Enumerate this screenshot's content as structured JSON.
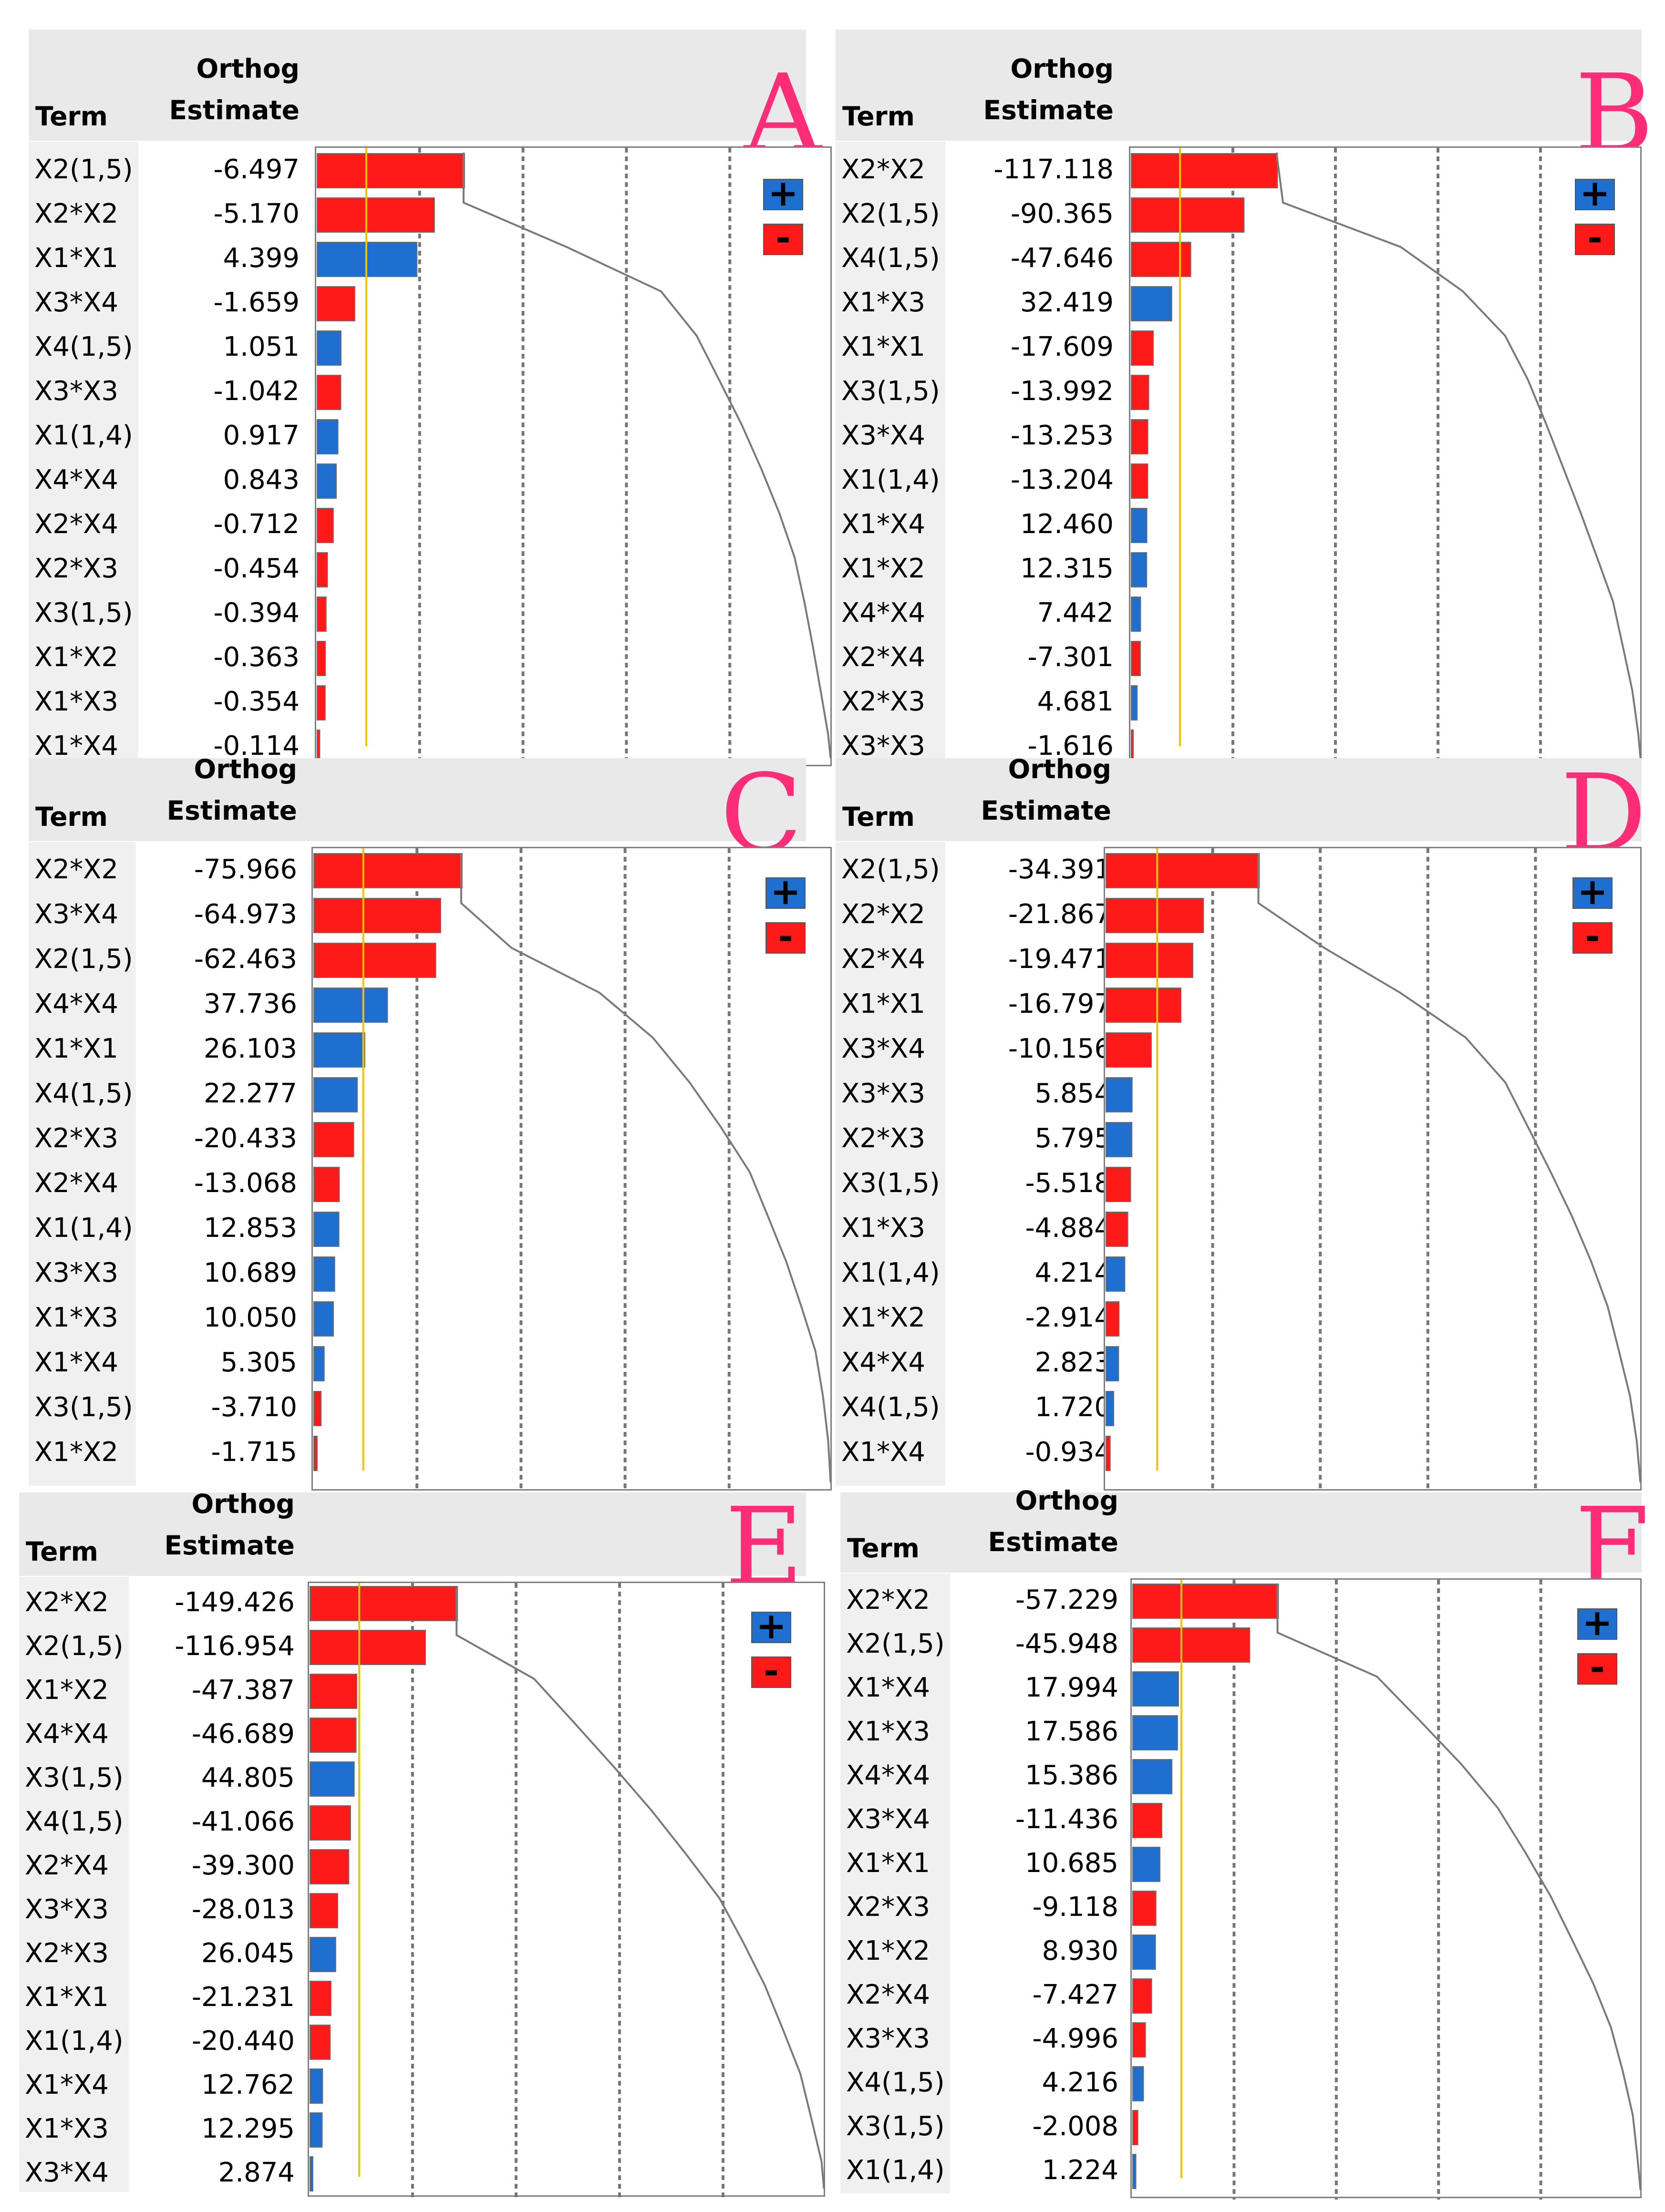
{
  "colors": {
    "positive": "#1f6fd1",
    "negative": "#ff1a1a",
    "accent_line": "#f2c200",
    "curve": "#7a7a7a",
    "header_bg": "#e9e9e9",
    "letter": "#ff2d78",
    "grid": "#777777"
  },
  "headers": {
    "term": "Term",
    "orthog_line1": "Orthog",
    "orthog_line2": "Estimate"
  },
  "legend": {
    "positive": "+",
    "negative": "-"
  },
  "chart_data": [
    {
      "type": "bar",
      "panel": "A",
      "title": "A",
      "max_abs": 6.497,
      "legend_position": "top-right",
      "categories": [
        "X2(1,5)",
        "X2*X2",
        "X1*X1",
        "X3*X4",
        "X4(1,5)",
        "X3*X3",
        "X1(1,4)",
        "X4*X4",
        "X2*X4",
        "X2*X3",
        "X3(1,5)",
        "X1*X2",
        "X1*X3",
        "X1*X4"
      ],
      "labels": [
        "-6.497",
        "-5.170",
        "4.399",
        "-1.659",
        "1.051",
        "-1.042",
        "0.917",
        "0.843",
        "-0.712",
        "-0.454",
        "-0.394",
        "-0.363",
        "-0.354",
        "-0.114"
      ],
      "values": [
        -6.497,
        -5.17,
        4.399,
        -1.659,
        1.051,
        -1.042,
        0.917,
        0.843,
        -0.712,
        -0.454,
        -0.394,
        -0.363,
        -0.354,
        -0.114
      ]
    },
    {
      "type": "bar",
      "panel": "B",
      "title": "B",
      "max_abs": 117.118,
      "legend_position": "top-right",
      "categories": [
        "X2*X2",
        "X2(1,5)",
        "X4(1,5)",
        "X1*X3",
        "X1*X1",
        "X3(1,5)",
        "X3*X4",
        "X1(1,4)",
        "X1*X4",
        "X1*X2",
        "X4*X4",
        "X2*X4",
        "X2*X3",
        "X3*X3"
      ],
      "labels": [
        "-117.118",
        "-90.365",
        "-47.646",
        "32.419",
        "-17.609",
        "-13.992",
        "-13.253",
        "-13.204",
        "12.460",
        "12.315",
        "7.442",
        "-7.301",
        "4.681",
        "-1.616"
      ],
      "values": [
        -117.118,
        -90.365,
        -47.646,
        32.419,
        -17.609,
        -13.992,
        -13.253,
        -13.204,
        12.46,
        12.315,
        7.442,
        -7.301,
        4.681,
        -1.616
      ]
    },
    {
      "type": "bar",
      "panel": "C",
      "title": "C",
      "max_abs": 75.966,
      "legend_position": "top-right",
      "categories": [
        "X2*X2",
        "X3*X4",
        "X2(1,5)",
        "X4*X4",
        "X1*X1",
        "X4(1,5)",
        "X2*X3",
        "X2*X4",
        "X1(1,4)",
        "X3*X3",
        "X1*X3",
        "X1*X4",
        "X3(1,5)",
        "X1*X2"
      ],
      "labels": [
        "-75.966",
        "-64.973",
        "-62.463",
        "37.736",
        "26.103",
        "22.277",
        "-20.433",
        "-13.068",
        "12.853",
        "10.689",
        "10.050",
        "5.305",
        "-3.710",
        "-1.715"
      ],
      "values": [
        -75.966,
        -64.973,
        -62.463,
        37.736,
        26.103,
        22.277,
        -20.433,
        -13.068,
        12.853,
        10.689,
        10.05,
        5.305,
        -3.71,
        -1.715
      ]
    },
    {
      "type": "bar",
      "panel": "D",
      "title": "D",
      "max_abs": 34.391,
      "legend_position": "top-right",
      "categories": [
        "X2(1,5)",
        "X2*X2",
        "X2*X4",
        "X1*X1",
        "X3*X4",
        "X3*X3",
        "X2*X3",
        "X3(1,5)",
        "X1*X3",
        "X1(1,4)",
        "X1*X2",
        "X4*X4",
        "X4(1,5)",
        "X1*X4"
      ],
      "labels": [
        "-34.391",
        "-21.867",
        "-19.471",
        "-16.797",
        "-10.156",
        "5.854",
        "5.795",
        "-5.518",
        "-4.884",
        "4.214",
        "-2.914",
        "2.823",
        "1.720",
        "-0.934"
      ],
      "values": [
        -34.391,
        -21.867,
        -19.471,
        -16.797,
        -10.156,
        5.854,
        5.795,
        -5.518,
        -4.884,
        4.214,
        -2.914,
        2.823,
        1.72,
        -0.934
      ]
    },
    {
      "type": "bar",
      "panel": "E",
      "title": "E",
      "max_abs": 149.426,
      "legend_position": "top-right",
      "categories": [
        "X2*X2",
        "X2(1,5)",
        "X1*X2",
        "X4*X4",
        "X3(1,5)",
        "X4(1,5)",
        "X2*X4",
        "X3*X3",
        "X2*X3",
        "X1*X1",
        "X1(1,4)",
        "X1*X4",
        "X1*X3",
        "X3*X4"
      ],
      "labels": [
        "-149.426",
        "-116.954",
        "-47.387",
        "-46.689",
        "44.805",
        "-41.066",
        "-39.300",
        "-28.013",
        "26.045",
        "-21.231",
        "-20.440",
        "12.762",
        "12.295",
        "2.874"
      ],
      "values": [
        -149.426,
        -116.954,
        -47.387,
        -46.689,
        44.805,
        -41.066,
        -39.3,
        -28.013,
        26.045,
        -21.231,
        -20.44,
        12.762,
        12.295,
        2.874
      ]
    },
    {
      "type": "bar",
      "panel": "F",
      "title": "F",
      "max_abs": 57.229,
      "legend_position": "top-right",
      "categories": [
        "X2*X2",
        "X2(1,5)",
        "X1*X4",
        "X1*X3",
        "X4*X4",
        "X3*X4",
        "X1*X1",
        "X2*X3",
        "X1*X2",
        "X2*X4",
        "X3*X3",
        "X4(1,5)",
        "X3(1,5)",
        "X1(1,4)"
      ],
      "labels": [
        "-57.229",
        "-45.948",
        "17.994",
        "17.586",
        "15.386",
        "-11.436",
        "10.685",
        "-9.118",
        "8.930",
        "-7.427",
        "-4.996",
        "4.216",
        "-2.008",
        "1.224"
      ],
      "values": [
        -57.229,
        -45.948,
        17.994,
        17.586,
        15.386,
        -11.436,
        10.685,
        -9.118,
        8.93,
        -7.427,
        -4.996,
        4.216,
        -2.008,
        1.224
      ]
    }
  ]
}
